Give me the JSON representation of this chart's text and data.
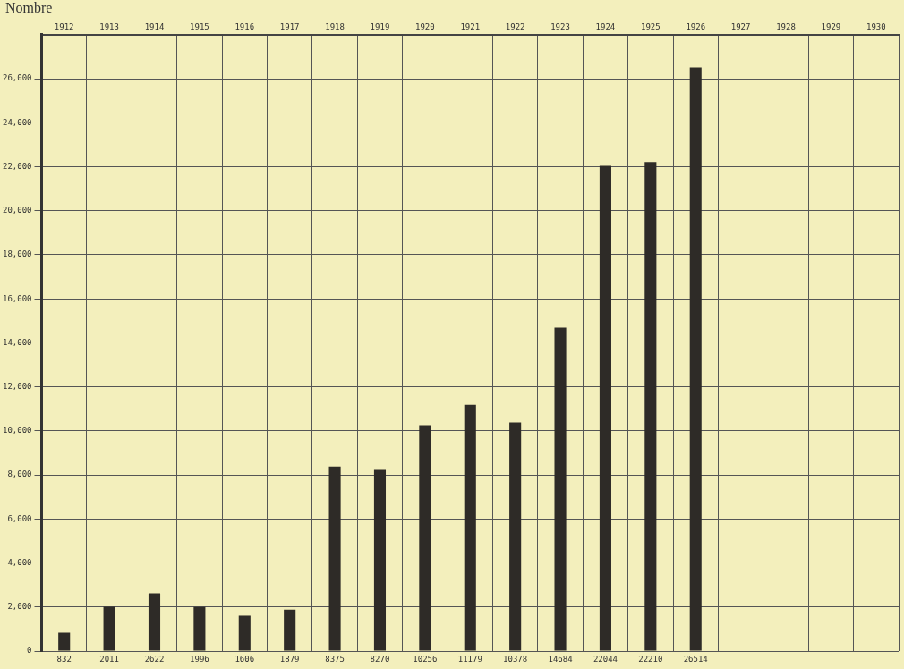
{
  "chart_data": {
    "type": "bar",
    "ylabel": "Nombre",
    "categories": [
      "1912",
      "1913",
      "1914",
      "1915",
      "1916",
      "1917",
      "1918",
      "1919",
      "1920",
      "1921",
      "1922",
      "1923",
      "1924",
      "1925",
      "1926",
      "1927",
      "1928",
      "1929",
      "1930"
    ],
    "values": [
      832,
      2011,
      2622,
      1996,
      1606,
      1879,
      8375,
      8270,
      10256,
      11179,
      10378,
      14684,
      22044,
      22210,
      26514,
      null,
      null,
      null,
      null
    ],
    "color": "#2e2b27",
    "data_labels": true,
    "grid": true,
    "ylim": [
      0,
      28000
    ],
    "yticks": [
      0,
      {
        "value": 2000,
        "label": "2,000"
      },
      {
        "value": 4000,
        "label": "4,000"
      },
      {
        "value": 6000,
        "label": "6,000"
      },
      {
        "value": 8000,
        "label": "8,000"
      },
      {
        "value": 10000,
        "label": "10,000"
      },
      {
        "value": 12000,
        "label": "12,000"
      },
      {
        "value": 14000,
        "label": "14,000"
      },
      {
        "value": 16000,
        "label": "16,000"
      },
      {
        "value": 18000,
        "label": "18,000"
      },
      {
        "value": 20000,
        "label": "20,000"
      },
      {
        "value": 22000,
        "label": "22,000"
      },
      {
        "value": 24000,
        "label": "24,000"
      },
      {
        "value": 26000,
        "label": "26,000"
      }
    ]
  }
}
